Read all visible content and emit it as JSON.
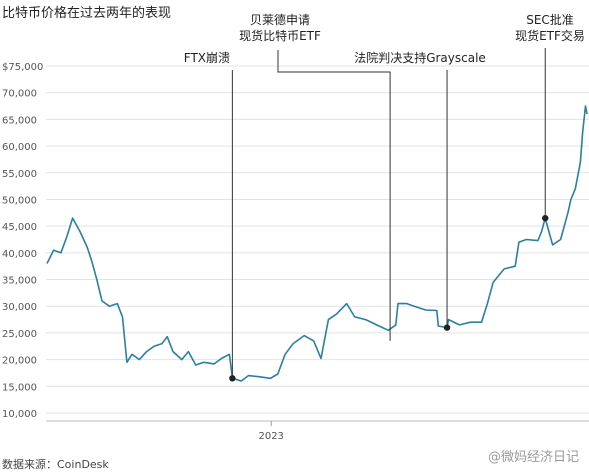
{
  "page_title": "比特币价格在过去两年的表现",
  "source": "数据来源：CoinDesk",
  "watermark": "@微妈经济日记",
  "chart_data": {
    "type": "line",
    "title": "比特币价格在过去两年的表现",
    "xlabel": "",
    "ylabel": "",
    "ylim": [
      10000,
      75000
    ],
    "y_ticks": [
      "10,000",
      "15,000",
      "20,000",
      "25,000",
      "30,000",
      "35,000",
      "40,000",
      "45,000",
      "50,000",
      "55,000",
      "60,000",
      "65,000",
      "70,000",
      "$75,000"
    ],
    "x_tick_labels": [
      {
        "label": "2023",
        "date": "2023-01-01"
      }
    ],
    "grid": true,
    "series": [
      {
        "color": "#2a7fa3",
        "points": [
          [
            "2022-03-01",
            38000
          ],
          [
            "2022-03-10",
            40500
          ],
          [
            "2022-03-20",
            40000
          ],
          [
            "2022-03-28",
            43000
          ],
          [
            "2022-04-05",
            46500
          ],
          [
            "2022-04-15",
            44000
          ],
          [
            "2022-04-25",
            41000
          ],
          [
            "2022-05-01",
            38500
          ],
          [
            "2022-05-08",
            35000
          ],
          [
            "2022-05-15",
            31000
          ],
          [
            "2022-05-25",
            30000
          ],
          [
            "2022-06-05",
            30500
          ],
          [
            "2022-06-12",
            28000
          ],
          [
            "2022-06-18",
            19500
          ],
          [
            "2022-06-25",
            21000
          ],
          [
            "2022-07-05",
            20000
          ],
          [
            "2022-07-15",
            21500
          ],
          [
            "2022-07-25",
            22500
          ],
          [
            "2022-08-05",
            23000
          ],
          [
            "2022-08-12",
            24300
          ],
          [
            "2022-08-20",
            21500
          ],
          [
            "2022-09-01",
            20000
          ],
          [
            "2022-09-10",
            21500
          ],
          [
            "2022-09-20",
            19000
          ],
          [
            "2022-10-01",
            19500
          ],
          [
            "2022-10-15",
            19200
          ],
          [
            "2022-10-25",
            20200
          ],
          [
            "2022-11-05",
            21000
          ],
          [
            "2022-11-09",
            16500
          ],
          [
            "2022-11-21",
            16000
          ],
          [
            "2022-12-01",
            17000
          ],
          [
            "2022-12-15",
            16800
          ],
          [
            "2022-12-31",
            16500
          ],
          [
            "2023-01-10",
            17300
          ],
          [
            "2023-01-20",
            21000
          ],
          [
            "2023-01-31",
            23000
          ],
          [
            "2023-02-15",
            24500
          ],
          [
            "2023-02-28",
            23500
          ],
          [
            "2023-03-10",
            20200
          ],
          [
            "2023-03-20",
            27500
          ],
          [
            "2023-03-31",
            28500
          ],
          [
            "2023-04-14",
            30500
          ],
          [
            "2023-04-25",
            28000
          ],
          [
            "2023-05-10",
            27500
          ],
          [
            "2023-05-25",
            26500
          ],
          [
            "2023-06-10",
            25500
          ],
          [
            "2023-06-20",
            26500
          ],
          [
            "2023-06-23",
            30500
          ],
          [
            "2023-07-05",
            30500
          ],
          [
            "2023-07-15",
            30000
          ],
          [
            "2023-07-31",
            29300
          ],
          [
            "2023-08-15",
            29200
          ],
          [
            "2023-08-17",
            26300
          ],
          [
            "2023-08-29",
            26000
          ],
          [
            "2023-08-31",
            27500
          ],
          [
            "2023-09-15",
            26500
          ],
          [
            "2023-09-30",
            27000
          ],
          [
            "2023-10-15",
            27000
          ],
          [
            "2023-10-23",
            30500
          ],
          [
            "2023-10-31",
            34500
          ],
          [
            "2023-11-15",
            37000
          ],
          [
            "2023-11-30",
            37500
          ],
          [
            "2023-12-05",
            42000
          ],
          [
            "2023-12-15",
            42500
          ],
          [
            "2023-12-31",
            42300
          ],
          [
            "2024-01-05",
            44000
          ],
          [
            "2024-01-10",
            46500
          ],
          [
            "2024-01-20",
            41500
          ],
          [
            "2024-01-31",
            42500
          ],
          [
            "2024-02-10",
            47500
          ],
          [
            "2024-02-14",
            50000
          ],
          [
            "2024-02-20",
            52000
          ],
          [
            "2024-02-27",
            57000
          ],
          [
            "2024-03-01",
            62500
          ],
          [
            "2024-03-05",
            67500
          ],
          [
            "2024-03-07",
            66000
          ]
        ]
      }
    ],
    "annotations": [
      {
        "lines": [
          "FTX崩溃"
        ],
        "date": "2022-11-09",
        "value": 16500,
        "marker": true
      },
      {
        "lines": [
          "贝莱德申请",
          "现货比特币ETF"
        ],
        "date": "2023-06-15",
        "value": 25000,
        "marker": false
      },
      {
        "lines": [
          "法院判决支持Grayscale"
        ],
        "date": "2023-08-29",
        "value": 26000,
        "marker": true
      },
      {
        "lines": [
          "SEC批准",
          "现货ETF交易"
        ],
        "date": "2024-01-10",
        "value": 46500,
        "marker": true
      }
    ]
  }
}
